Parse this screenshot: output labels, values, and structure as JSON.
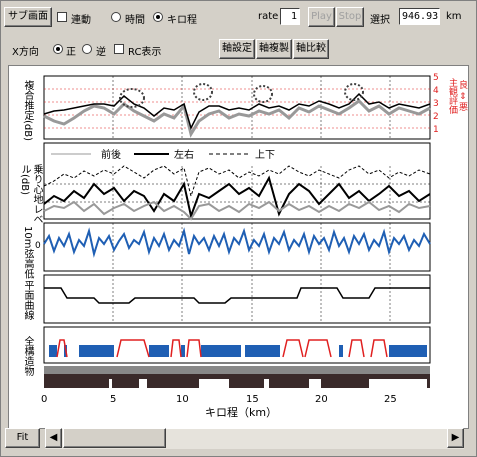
{
  "toolbar": {
    "sub_screen": "サブ画面",
    "link": "連動",
    "time": "時間",
    "km": "キロ程",
    "rate_label": "rate",
    "rate_value": "1",
    "play": "Play",
    "stop": "Stop",
    "select_label": "選択",
    "select_value": "946.93",
    "select_unit": "km"
  },
  "toolbar2": {
    "x_dir": "X方向",
    "forward": "正",
    "reverse": "逆",
    "rc": "RC表示",
    "axis_setting": "軸設定",
    "axis_copy": "軸複製",
    "axis_compare": "軸比較"
  },
  "panels": {
    "p1_label": "複合推定(dB)",
    "p1_right_label": "主観評価",
    "p1_right_sub": "良 ⇔ 悪",
    "p1_ticks": [
      "5",
      "4",
      "3",
      "2",
      "1"
    ],
    "p2_label": "乗り心地レベル(dB)",
    "legend": [
      "前後",
      "左右",
      "上下"
    ],
    "p3_label": "10m弦高低",
    "p3_zero": "0",
    "p4_label": "平面曲線",
    "p5_label": "全構造物"
  },
  "x_axis": {
    "ticks": [
      "0",
      "5",
      "10",
      "15",
      "20",
      "25"
    ],
    "label": "キロ程（km）"
  },
  "footer": {
    "fit": "Fit"
  },
  "colors": {
    "gray_series": "#999999",
    "blue_series": "#1f5fb4",
    "red_series": "#e02020"
  }
}
